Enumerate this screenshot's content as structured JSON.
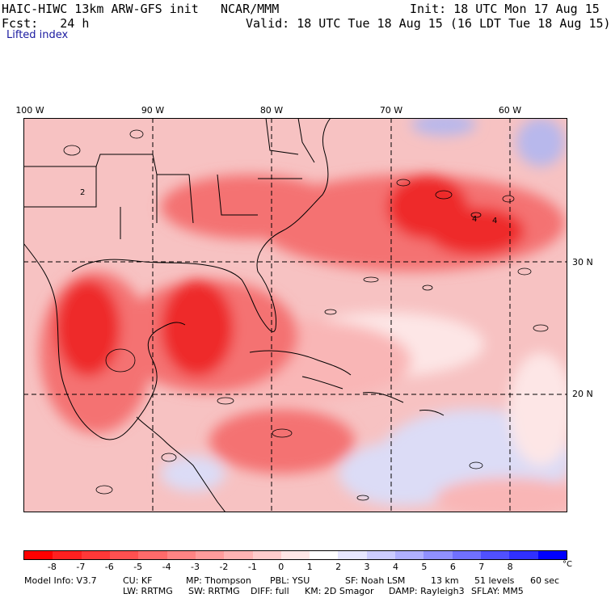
{
  "header": {
    "title": "HAIC-HIWC 13km ARW-GFS init",
    "org": "NCAR/MMM",
    "init": "Init: 18 UTC Mon 17 Aug 15",
    "forecast": "Fcst:   24 h",
    "valid": "Valid: 18 UTC Tue 18 Aug 15 (16 LDT Tue 18 Aug 15)",
    "field": "Lifted index"
  },
  "map": {
    "longitude_labels": [
      "100 W",
      "90 W",
      "80 W",
      "70 W",
      "60 W"
    ],
    "latitude_labels": [
      "30 N",
      "20 N"
    ],
    "contour_labels": [
      "2",
      "4",
      "4"
    ],
    "field_colors": {
      "background": "#f7c2c2",
      "strong_negative": "#ee2a2a",
      "moderate_negative": "#f47272",
      "weak_negative": "#f9b6b6",
      "neutral": "#fde6e6",
      "weak_positive": "#dcdcf6",
      "positive": "#b8b8ec"
    }
  },
  "colorbar": {
    "ticks": [
      "-8",
      "-7",
      "-6",
      "-5",
      "-4",
      "-3",
      "-2",
      "-1",
      "0",
      "1",
      "2",
      "3",
      "4",
      "5",
      "6",
      "7",
      "8"
    ],
    "unit": "°C",
    "colors": [
      "#ff0000",
      "#ff2020",
      "#ff3838",
      "#ff5050",
      "#ff6a6a",
      "#ff8484",
      "#ff9c9c",
      "#ffb4b4",
      "#ffcccc",
      "#ffe6e6",
      "#ffffff",
      "#e6e6ff",
      "#ccccff",
      "#b0b0ff",
      "#9090ff",
      "#7070ff",
      "#5050ff",
      "#3030ff",
      "#0000ff"
    ]
  },
  "footer": {
    "line1": [
      "Model Info: V3.7",
      "CU: KF",
      "MP: Thompson",
      "PBL: YSU",
      "SF: Noah LSM",
      "13 km",
      "51 levels",
      "60 sec"
    ],
    "line2": [
      "LW: RRTMG",
      "SW: RRTMG",
      "DIFF: full",
      "KM: 2D Smagor",
      "DAMP: Rayleigh3",
      "SFLAY: MM5"
    ]
  }
}
